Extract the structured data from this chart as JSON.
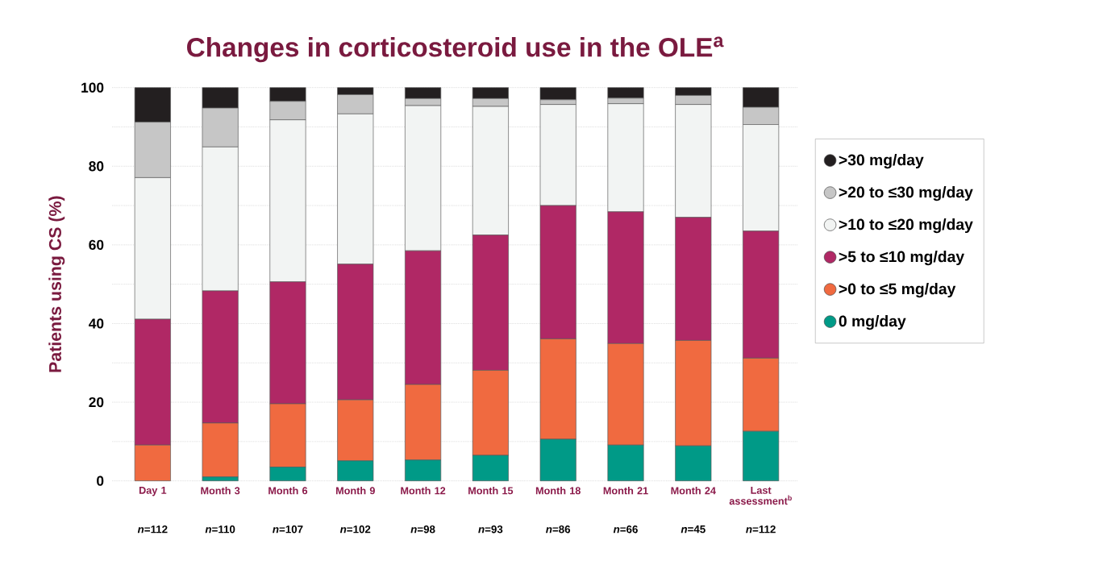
{
  "chart_data": {
    "type": "bar",
    "stacked": true,
    "title": "Changes in corticosteroid use in the OLE$^{a}$",
    "ylabel": "Patients using CS (%)",
    "categories": [
      "Day 1",
      "Month 3",
      "Month 6",
      "Month 9",
      "Month 12",
      "Month 15",
      "Month 18",
      "Month 21",
      "Month 24",
      "Last assessment$^{b}$"
    ],
    "series": [
      {
        "name": "0 mg/day",
        "color": "#009a87",
        "values": [
          0,
          1.0,
          3.5,
          5.1,
          5.3,
          6.5,
          10.6,
          9.1,
          8.9,
          12.6
        ]
      },
      {
        "name": ">0 to ≤5 mg/day",
        "color": "#f06a40",
        "values": [
          9.1,
          13.7,
          16.1,
          15.5,
          19.2,
          21.6,
          25.5,
          25.8,
          26.8,
          18.6
        ]
      },
      {
        "name": ">5 to ≤10 mg/day",
        "color": "#b02865",
        "values": [
          32.0,
          33.6,
          31.0,
          34.5,
          34.0,
          34.4,
          33.9,
          33.5,
          31.3,
          32.3
        ]
      },
      {
        "name": ">10 to ≤20 mg/day",
        "color": "#f2f4f3",
        "values": [
          36.0,
          36.6,
          41.2,
          38.2,
          36.9,
          32.7,
          25.7,
          27.5,
          28.7,
          27.1
        ]
      },
      {
        "name": ">20 to ≤30 mg/day",
        "color": "#c6c6c6",
        "values": [
          14.1,
          9.9,
          4.7,
          4.9,
          1.8,
          2.0,
          1.2,
          1.4,
          2.3,
          4.4
        ]
      },
      {
        "name": ">30 mg/day",
        "color": "#231f20",
        "values": [
          8.8,
          5.2,
          3.5,
          1.8,
          2.8,
          2.8,
          3.1,
          2.7,
          2.0,
          5.0
        ]
      }
    ],
    "ylim": [
      0,
      100
    ],
    "yticks": [
      0,
      {
        "value": 10,
        "label": null
      },
      20,
      {
        "value": 30,
        "label": null
      },
      40,
      {
        "value": 50,
        "label": null
      },
      60,
      {
        "value": 70,
        "label": null
      },
      80,
      {
        "value": 90,
        "label": null
      },
      100
    ],
    "grid": "y",
    "legend": "right",
    "annotations": [
      "*n*=112",
      "*n*=110",
      "*n*=107",
      "*n*=102",
      "*n*=98",
      "*n*=93",
      "*n*=86",
      "*n*=66",
      "*n*=45",
      "*n*=112"
    ]
  }
}
